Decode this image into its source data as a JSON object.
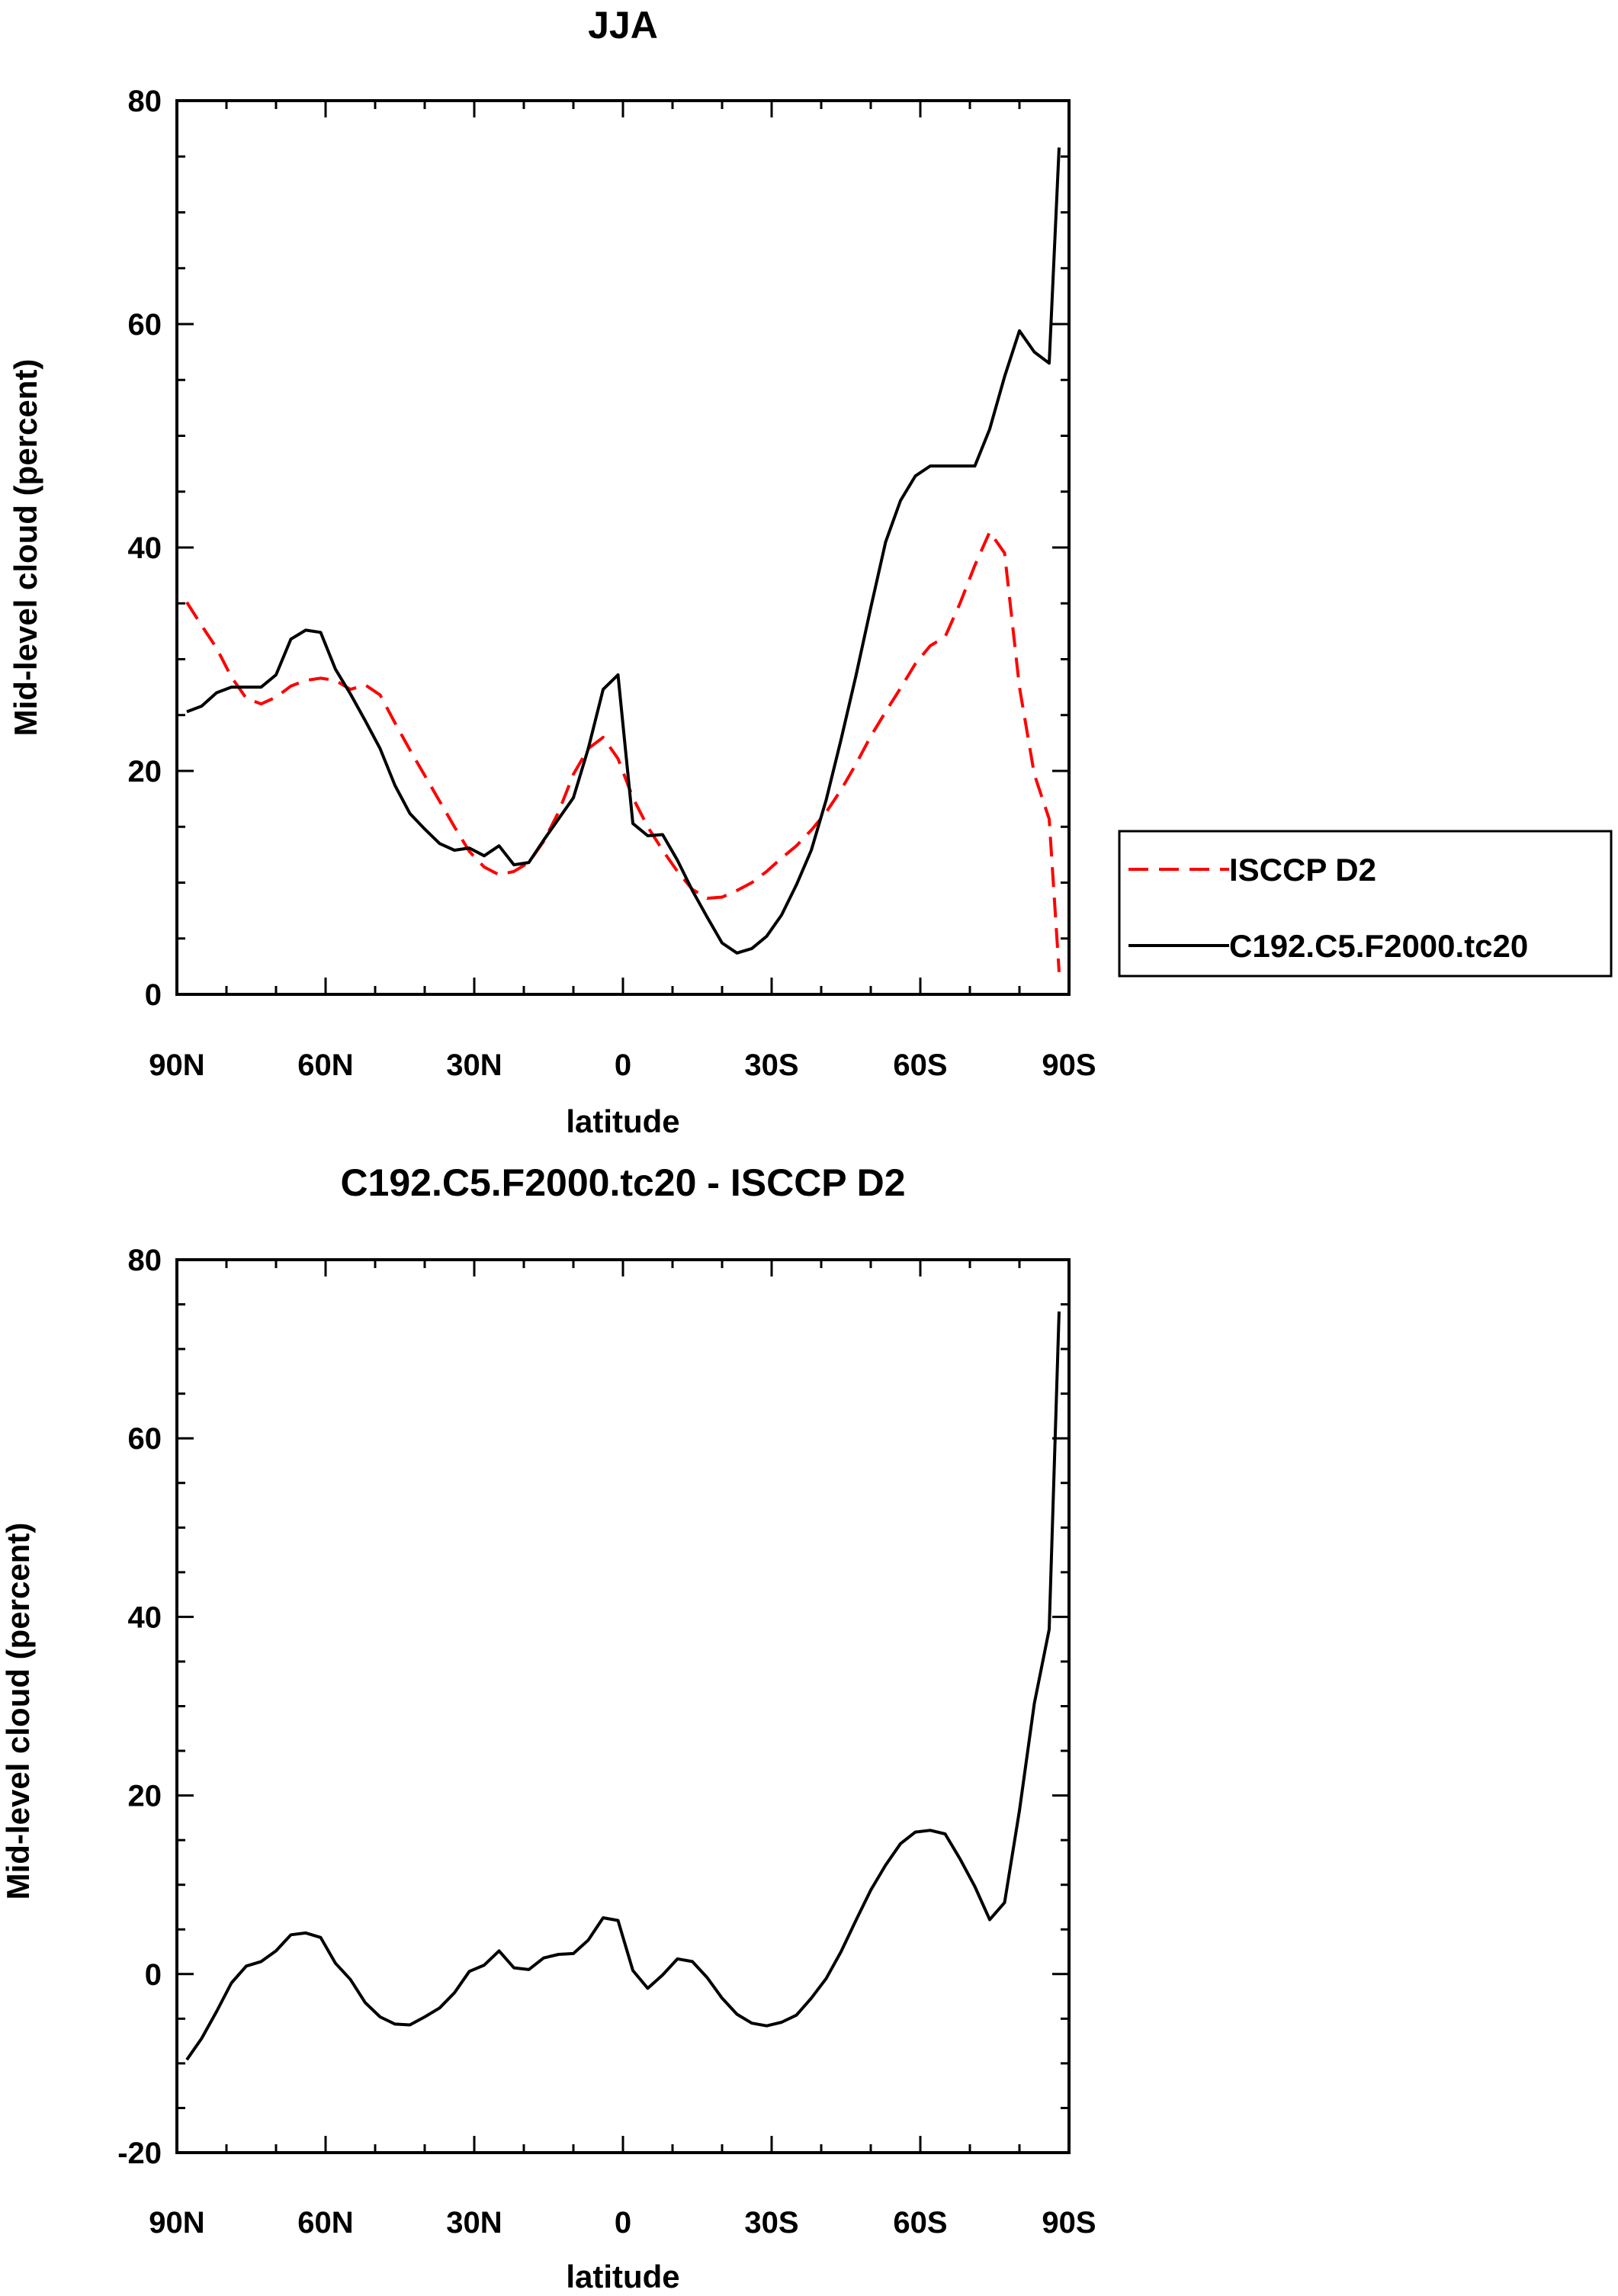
{
  "chart_data": [
    {
      "type": "line",
      "title": "JJA",
      "xlabel": "latitude",
      "ylabel": "Mid-level cloud (percent)",
      "xlim": [
        90,
        -90
      ],
      "ylim": [
        0,
        80
      ],
      "xticks": [
        {
          "value": 90,
          "label": "90N"
        },
        {
          "value": 60,
          "label": "60N"
        },
        {
          "value": 30,
          "label": "30N"
        },
        {
          "value": 0,
          "label": "0"
        },
        {
          "value": -30,
          "label": "30S"
        },
        {
          "value": -60,
          "label": "60S"
        },
        {
          "value": -90,
          "label": "90S"
        }
      ],
      "yticks": [
        {
          "value": 0,
          "label": "0"
        },
        {
          "value": 20,
          "label": "20"
        },
        {
          "value": 40,
          "label": "40"
        },
        {
          "value": 60,
          "label": "60"
        },
        {
          "value": 80,
          "label": "80"
        }
      ],
      "legend": {
        "position": "right"
      },
      "series": [
        {
          "name": "ISCCP D2",
          "color": "#ff0000",
          "dash": true,
          "x": [
            88,
            85,
            82,
            79,
            76,
            73,
            70,
            67,
            64,
            61,
            58,
            55,
            52,
            49,
            46,
            43,
            40,
            37,
            34,
            31,
            28,
            25,
            22,
            19,
            16,
            13,
            10,
            7,
            4,
            1,
            -2,
            -5,
            -8,
            -11,
            -14,
            -17,
            -20,
            -23,
            -26,
            -29,
            -32,
            -35,
            -38,
            -41,
            -44,
            -47,
            -50,
            -53,
            -56,
            -59,
            -62,
            -65,
            -68,
            -71,
            -74,
            -77,
            -80,
            -83,
            -86,
            -88
          ],
          "y": [
            35.1,
            33.0,
            31.0,
            28.4,
            26.5,
            26.0,
            26.6,
            27.6,
            28.1,
            28.3,
            28.1,
            27.3,
            27.7,
            26.8,
            24.3,
            21.9,
            19.6,
            17.3,
            15.0,
            12.8,
            11.4,
            10.7,
            11.0,
            11.8,
            13.7,
            16.3,
            19.7,
            22.0,
            23.0,
            21.1,
            17.6,
            15.0,
            12.9,
            11.0,
            9.4,
            8.6,
            8.7,
            9.3,
            10.0,
            11.0,
            12.2,
            13.3,
            14.7,
            16.3,
            18.3,
            20.6,
            23.1,
            25.3,
            27.4,
            29.6,
            31.2,
            32.0,
            35.0,
            38.4,
            41.4,
            39.5,
            27.5,
            19.7,
            15.7,
            2.0
          ]
        },
        {
          "name": "C192.C5.F2000.tc20",
          "color": "#000000",
          "dash": false,
          "x": [
            88,
            85,
            82,
            79,
            76,
            73,
            70,
            67,
            64,
            61,
            58,
            55,
            52,
            49,
            46,
            43,
            40,
            37,
            34,
            31,
            28,
            25,
            22,
            19,
            16,
            13,
            10,
            7,
            4,
            1,
            -2,
            -5,
            -8,
            -11,
            -14,
            -17,
            -20,
            -23,
            -26,
            -29,
            -32,
            -35,
            -38,
            -41,
            -44,
            -47,
            -50,
            -53,
            -56,
            -59,
            -62,
            -65,
            -68,
            -71,
            -74,
            -77,
            -80,
            -83,
            -86,
            -88
          ],
          "y": [
            25.3,
            25.8,
            27.0,
            27.5,
            27.5,
            27.5,
            28.6,
            31.8,
            32.6,
            32.4,
            29.1,
            26.9,
            24.5,
            22.0,
            18.7,
            16.2,
            14.8,
            13.5,
            12.9,
            13.1,
            12.4,
            13.3,
            11.6,
            11.8,
            13.8,
            15.7,
            17.6,
            22.0,
            27.3,
            28.6,
            15.3,
            14.2,
            14.3,
            12.0,
            9.3,
            6.9,
            4.6,
            3.7,
            4.1,
            5.2,
            7.1,
            9.8,
            12.9,
            17.4,
            22.8,
            28.5,
            34.6,
            40.5,
            44.2,
            46.4,
            47.3,
            47.3,
            47.3,
            47.3,
            50.6,
            55.3,
            59.4,
            57.5,
            56.5,
            75.8
          ]
        }
      ]
    },
    {
      "type": "line",
      "title": "C192.C5.F2000.tc20 - ISCCP D2",
      "xlabel": "latitude",
      "ylabel": "Mid-level cloud (percent)",
      "xlim": [
        90,
        -90
      ],
      "ylim": [
        -20,
        80
      ],
      "xticks": [
        {
          "value": 90,
          "label": "90N"
        },
        {
          "value": 60,
          "label": "60N"
        },
        {
          "value": 30,
          "label": "30N"
        },
        {
          "value": 0,
          "label": "0"
        },
        {
          "value": -30,
          "label": "30S"
        },
        {
          "value": -60,
          "label": "60S"
        },
        {
          "value": -90,
          "label": "90S"
        }
      ],
      "yticks": [
        {
          "value": -20,
          "label": "-20"
        },
        {
          "value": 0,
          "label": "0"
        },
        {
          "value": 20,
          "label": "20"
        },
        {
          "value": 40,
          "label": "40"
        },
        {
          "value": 60,
          "label": "60"
        },
        {
          "value": 80,
          "label": "80"
        }
      ],
      "series": [
        {
          "name": "C192.C5.F2000.tc20 - ISCCP D2",
          "color": "#000000",
          "dash": false,
          "x": [
            88,
            85,
            82,
            79,
            76,
            73,
            70,
            67,
            64,
            61,
            58,
            55,
            52,
            49,
            46,
            43,
            40,
            37,
            34,
            31,
            28,
            25,
            22,
            19,
            16,
            13,
            10,
            7,
            4,
            1,
            -2,
            -5,
            -8,
            -11,
            -14,
            -17,
            -20,
            -23,
            -26,
            -29,
            -32,
            -35,
            -38,
            -41,
            -44,
            -47,
            -50,
            -53,
            -56,
            -59,
            -62,
            -65,
            -68,
            -71,
            -74,
            -77,
            -80,
            -83,
            -86,
            -88
          ],
          "y": [
            -9.6,
            -7.2,
            -4.2,
            -1.0,
            0.9,
            1.4,
            2.6,
            4.4,
            4.6,
            4.1,
            1.2,
            -0.6,
            -3.2,
            -4.8,
            -5.6,
            -5.7,
            -4.8,
            -3.8,
            -2.1,
            0.3,
            1.0,
            2.6,
            0.7,
            0.5,
            1.8,
            2.2,
            2.3,
            3.8,
            6.3,
            6.0,
            0.4,
            -1.6,
            -0.1,
            1.7,
            1.4,
            -0.4,
            -2.7,
            -4.5,
            -5.5,
            -5.8,
            -5.4,
            -4.6,
            -2.7,
            -0.5,
            2.5,
            6.0,
            9.4,
            12.2,
            14.6,
            15.9,
            16.1,
            15.7,
            12.9,
            9.8,
            6.1,
            8.0,
            18.3,
            30.3,
            38.6,
            74.2
          ]
        }
      ]
    }
  ]
}
